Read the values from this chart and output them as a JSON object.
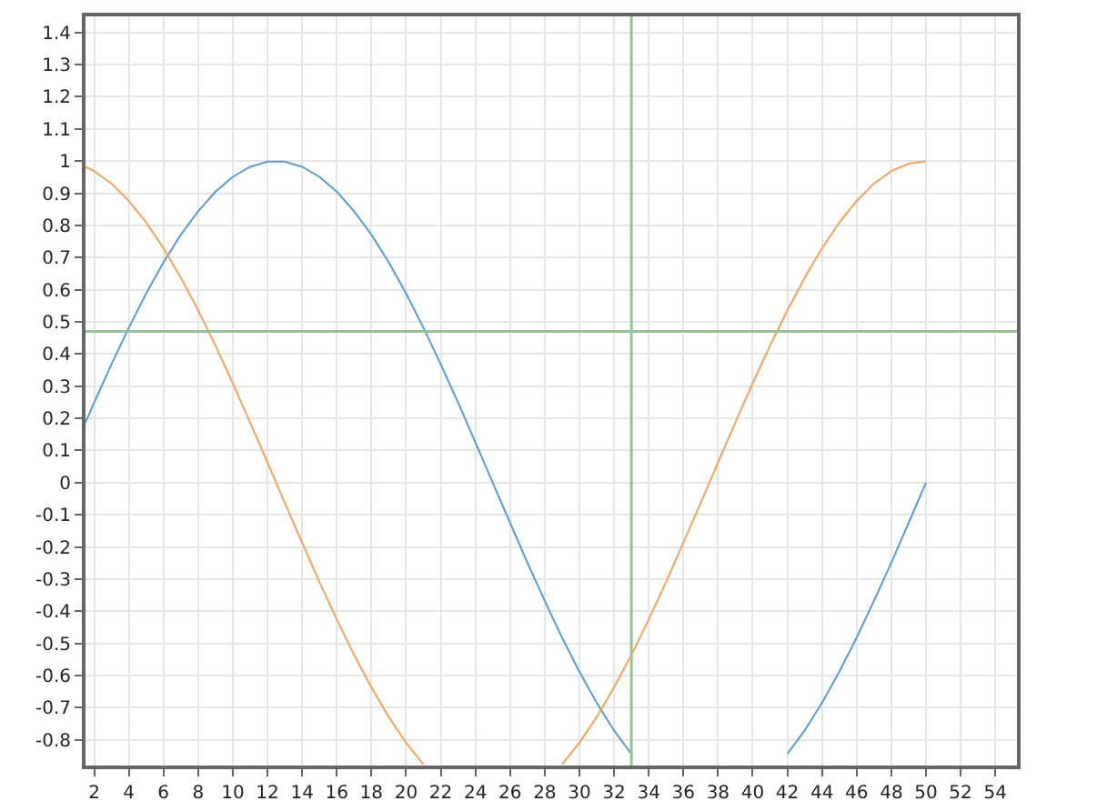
{
  "chart_data": {
    "type": "line",
    "xlim": [
      1.5,
      55.25
    ],
    "ylim": [
      -0.88,
      1.45
    ],
    "xticks": [
      2,
      4,
      6,
      8,
      10,
      12,
      14,
      16,
      18,
      20,
      22,
      24,
      26,
      28,
      30,
      32,
      34,
      36,
      38,
      40,
      42,
      44,
      46,
      48,
      50,
      52,
      54
    ],
    "yticks": [
      -0.8,
      -0.7,
      -0.6,
      -0.5,
      -0.4,
      -0.3,
      -0.2,
      -0.1,
      0,
      0.1,
      0.2,
      0.3,
      0.4,
      0.5,
      0.6,
      0.7,
      0.8,
      0.9,
      1,
      1.1,
      1.2,
      1.3,
      1.4
    ],
    "grid": true,
    "line_style": "solid",
    "series": [
      {
        "color": "#5b9bd5",
        "x": [
          1.5,
          2,
          3,
          4,
          5,
          6,
          7,
          8,
          9,
          10,
          11,
          12,
          13,
          14,
          15,
          16,
          17,
          18,
          19,
          20,
          21,
          22,
          23,
          24,
          25,
          26,
          27,
          28,
          29,
          30,
          31,
          32,
          33,
          37,
          42,
          43,
          44,
          45,
          46,
          47,
          48,
          49,
          50
        ],
        "values": [
          0.187,
          0.249,
          0.368,
          0.482,
          0.588,
          0.685,
          0.771,
          0.844,
          0.905,
          0.951,
          0.982,
          0.998,
          0.998,
          0.982,
          0.951,
          0.905,
          0.844,
          0.771,
          0.685,
          0.588,
          0.482,
          0.368,
          0.249,
          0.125,
          0,
          -0.125,
          -0.249,
          -0.368,
          -0.482,
          -0.588,
          -0.685,
          -0.771,
          -0.844,
          null,
          -0.844,
          -0.771,
          -0.685,
          -0.588,
          -0.482,
          -0.368,
          -0.249,
          -0.125,
          0
        ]
      },
      {
        "color": "#f7a35c",
        "x": [
          1.5,
          2,
          3,
          4,
          5,
          6,
          7,
          8,
          9,
          10,
          11,
          12,
          13,
          14,
          15,
          16,
          17,
          18,
          19,
          20,
          21,
          25,
          29,
          30,
          31,
          32,
          33,
          34,
          35,
          36,
          37,
          38,
          39,
          40,
          41,
          42,
          43,
          44,
          45,
          46,
          47,
          48,
          49,
          50
        ],
        "values": [
          0.982,
          0.969,
          0.93,
          0.876,
          0.809,
          0.729,
          0.637,
          0.536,
          0.426,
          0.309,
          0.187,
          0.063,
          -0.063,
          -0.187,
          -0.309,
          -0.426,
          -0.536,
          -0.637,
          -0.729,
          -0.809,
          -0.876,
          null,
          -0.876,
          -0.809,
          -0.729,
          -0.637,
          -0.536,
          -0.426,
          -0.309,
          -0.187,
          -0.063,
          0.063,
          0.187,
          0.309,
          0.426,
          0.536,
          0.637,
          0.729,
          0.809,
          0.876,
          0.93,
          0.969,
          0.992,
          1
        ]
      }
    ],
    "ref_lines": [
      {
        "axis": "x",
        "value": 33,
        "color": "#8cc98c"
      },
      {
        "axis": "y",
        "value": 0.47,
        "color": "#8cc98c"
      }
    ]
  }
}
